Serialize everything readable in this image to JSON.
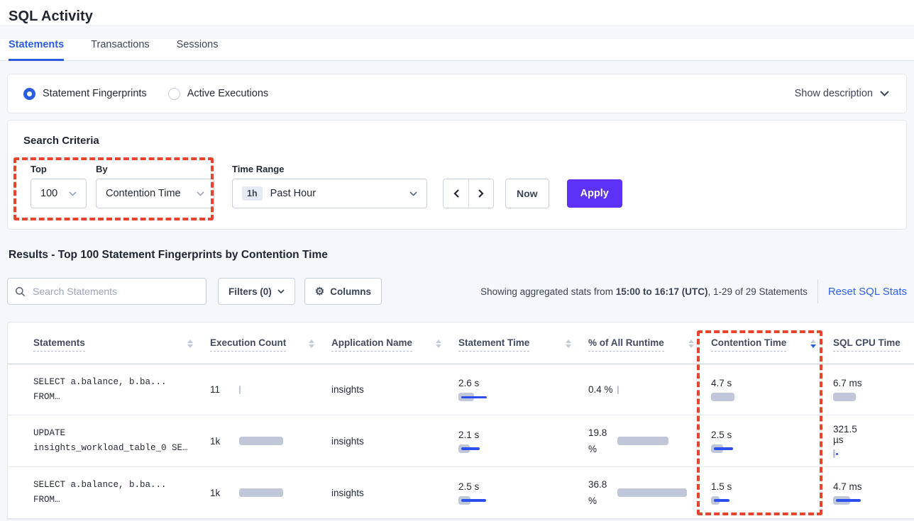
{
  "page": {
    "title": "SQL Activity"
  },
  "tabs": {
    "statements": "Statements",
    "transactions": "Transactions",
    "sessions": "Sessions"
  },
  "view_toggle": {
    "fingerprints_label": "Statement Fingerprints",
    "active_executions_label": "Active Executions",
    "show_description_label": "Show description"
  },
  "search_criteria": {
    "heading": "Search Criteria",
    "top": {
      "label": "Top",
      "value": "100"
    },
    "by": {
      "label": "By",
      "value": "Contention Time"
    },
    "time_range": {
      "label": "Time Range",
      "badge": "1h",
      "value": "Past Hour"
    },
    "now_label": "Now",
    "apply_label": "Apply"
  },
  "results": {
    "heading": "Results - Top 100 Statement Fingerprints by Contention Time",
    "search_placeholder": "Search Statements",
    "filters_label": "Filters (0)",
    "columns_label": "Columns",
    "stats_prefix": "Showing aggregated stats from ",
    "stats_bold": "15:00 to 16:17 (UTC)",
    "stats_suffix": ", 1-29 of 29 Statements",
    "reset_label": "Reset SQL Stats"
  },
  "table": {
    "headers": {
      "statements": "Statements",
      "execution_count": "Execution Count",
      "application_name": "Application Name",
      "statement_time": "Statement Time",
      "pct_runtime": "% of All Runtime",
      "contention_time": "Contention Time",
      "sql_cpu_time": "SQL CPU Time"
    },
    "sorted_by": "Contention Time",
    "sort_direction": "desc",
    "rows": [
      {
        "statement_line1": "SELECT a.balance, b.ba...",
        "statement_line2": "FROM…",
        "exec": {
          "value": "11",
          "bar": 2
        },
        "app": "insights",
        "stmt_time": {
          "value": "2.6 s",
          "gray": 22,
          "blue": 36
        },
        "runtime": {
          "line1": "0.4 %",
          "line2": "",
          "bar": 2
        },
        "contention": {
          "value": "4.7 s",
          "gray": 33,
          "blue": 0
        },
        "cpu": {
          "line1": "6.7 ms",
          "line2": "",
          "gray": 32,
          "blue": 0
        }
      },
      {
        "statement_line1": "UPDATE",
        "statement_line2": "insights_workload_table_0 SE…",
        "exec": {
          "value": "1k",
          "bar": 62
        },
        "app": "insights",
        "stmt_time": {
          "value": "2.1 s",
          "gray": 16,
          "blue": 26
        },
        "runtime": {
          "line1": "19.8",
          "line2": "%",
          "bar": 72
        },
        "contention": {
          "value": "2.5 s",
          "gray": 17,
          "blue": 27
        },
        "cpu": {
          "line1": "321.5",
          "line2": "µs",
          "gray": 3,
          "blue": 3
        }
      },
      {
        "statement_line1": "SELECT a.balance, b.ba...",
        "statement_line2": "FROM…",
        "exec": {
          "value": "1k",
          "bar": 62
        },
        "app": "insights",
        "stmt_time": {
          "value": "2.5 s",
          "gray": 17,
          "blue": 35
        },
        "runtime": {
          "line1": "36.8",
          "line2": "%",
          "bar": 98
        },
        "contention": {
          "value": "1.5 s",
          "gray": 12,
          "blue": 22
        },
        "cpu": {
          "line1": "4.7 ms",
          "line2": "",
          "gray": 24,
          "blue": 35
        }
      }
    ]
  },
  "colors": {
    "accent_blue": "#2a5ce3",
    "link_blue": "#2e62f5",
    "bar_blue": "#2b50ee",
    "bar_gray": "#c0c7d8",
    "apply_purple": "#5b32f6",
    "annotation_red": "#e8432c",
    "page_background": "#f5f7fa"
  }
}
